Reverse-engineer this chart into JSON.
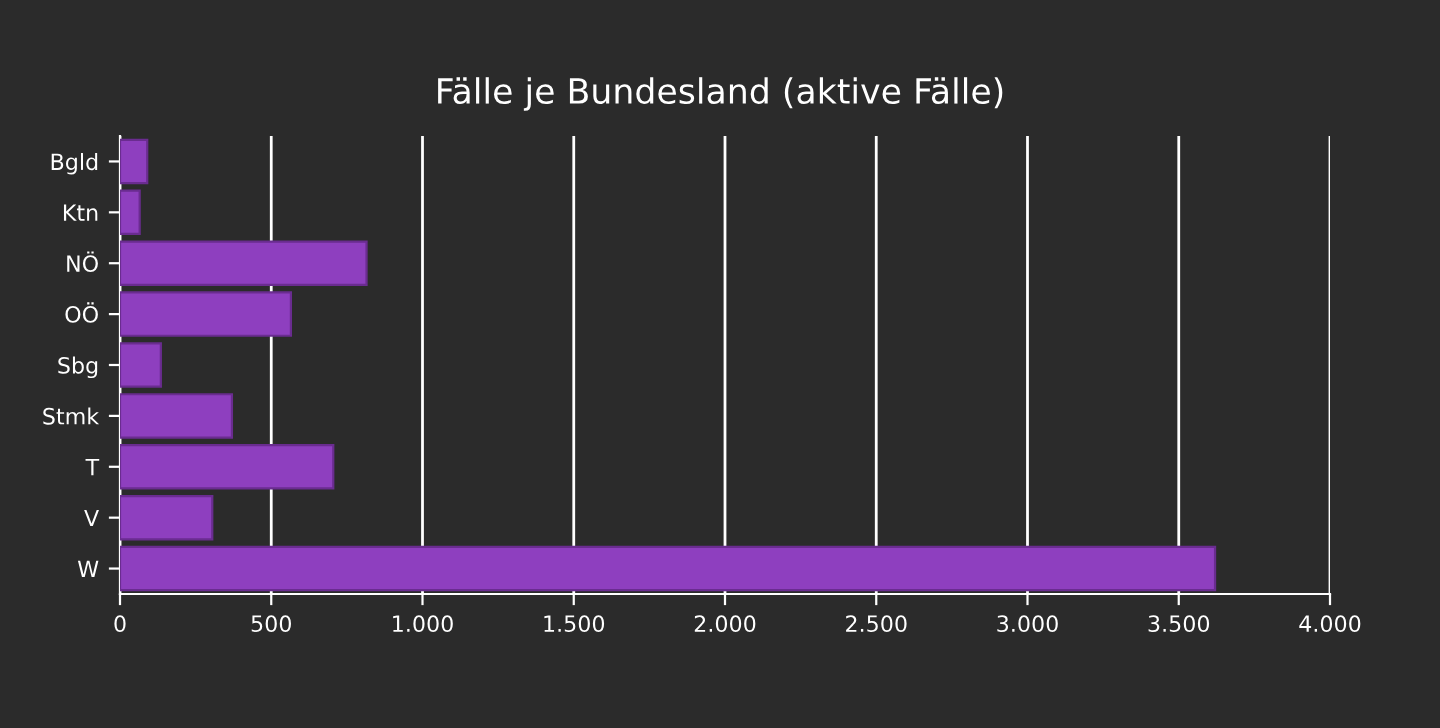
{
  "chart_data": {
    "type": "bar",
    "orientation": "horizontal",
    "title": "Fälle je Bundesland (aktive Fälle)",
    "categories": [
      "Bgld",
      "Ktn",
      "NÖ",
      "OÖ",
      "Sbg",
      "Stmk",
      "T",
      "V",
      "W"
    ],
    "values": [
      90,
      65,
      815,
      565,
      135,
      370,
      705,
      305,
      3620
    ],
    "color": "#8e3fbf",
    "xlim": [
      0,
      4000
    ],
    "xticks": [
      0,
      500,
      {
        "value": 1000,
        "label": "1.000"
      },
      {
        "value": 1500,
        "label": "1.500"
      },
      {
        "value": 2000,
        "label": "2.000"
      },
      {
        "value": 2500,
        "label": "2.500"
      },
      {
        "value": 3000,
        "label": "3.000"
      },
      {
        "value": 3500,
        "label": "3.500"
      },
      {
        "value": 4000,
        "label": "4.000"
      }
    ],
    "grid": "x"
  }
}
